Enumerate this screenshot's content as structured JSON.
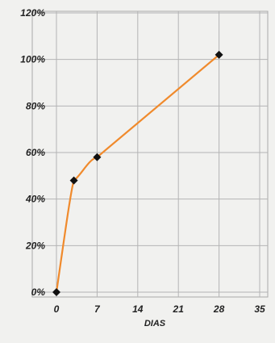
{
  "chart_data": {
    "type": "line",
    "xlabel": "DIAS",
    "ylabel": "",
    "xlim": [
      0,
      35
    ],
    "ylim": [
      0,
      120
    ],
    "x_ticks": [
      0,
      7,
      14,
      21,
      28,
      35
    ],
    "x_tick_labels": [
      "0",
      "7",
      "14",
      "21",
      "28",
      "35"
    ],
    "y_ticks": [
      0,
      20,
      40,
      60,
      80,
      100,
      120
    ],
    "y_tick_labels": [
      "0%",
      "20%",
      "40%",
      "60%",
      "80%",
      "100%",
      "120%"
    ],
    "grid": true,
    "legend": "none",
    "series": [
      {
        "color": "#f08a2c",
        "marker_color": "#111111",
        "points": [
          {
            "x": 0,
            "y": 0
          },
          {
            "x": 3,
            "y": 48
          },
          {
            "x": 7,
            "y": 58
          },
          {
            "x": 28,
            "y": 102
          }
        ]
      }
    ]
  }
}
